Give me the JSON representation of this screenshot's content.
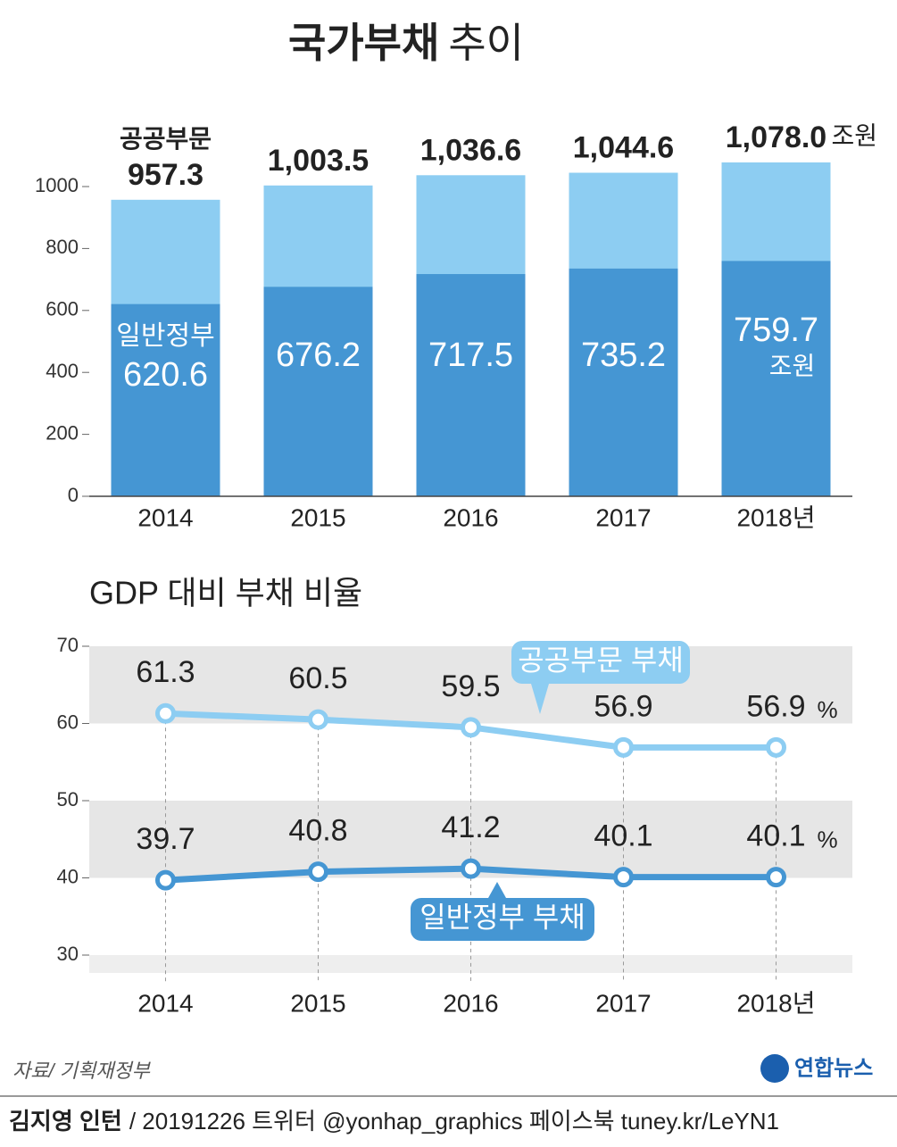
{
  "title": "국가부채",
  "title_suffix": "추이",
  "chart_data": [
    {
      "type": "bar",
      "categories": [
        "2014",
        "2015",
        "2016",
        "2017",
        "2018년"
      ],
      "unit": "조원",
      "series": [
        {
          "name": "공공부문",
          "color": "#8dcdf2",
          "values": [
            957.3,
            1003.5,
            1036.6,
            1044.6,
            1078.0
          ],
          "value_labels": [
            "957.3",
            "1,003.5",
            "1,036.6",
            "1,044.6",
            "1,078.0"
          ]
        },
        {
          "name": "일반정부",
          "color": "#4596d3",
          "values": [
            620.6,
            676.2,
            717.5,
            735.2,
            759.7
          ]
        }
      ],
      "ylim": [
        0,
        1200
      ],
      "yticks": [
        0,
        200,
        400,
        600,
        800,
        1000
      ]
    },
    {
      "type": "line",
      "title": "GDP 대비 부채 비율",
      "categories": [
        "2014",
        "2015",
        "2016",
        "2017",
        "2018년"
      ],
      "unit": "%",
      "series": [
        {
          "name": "공공부문 부채",
          "color": "#8dcdf2",
          "values": [
            61.3,
            60.5,
            59.5,
            56.9,
            56.9
          ]
        },
        {
          "name": "일반정부 부채",
          "color": "#4596d3",
          "values": [
            39.7,
            40.8,
            41.2,
            40.1,
            40.1
          ]
        }
      ],
      "ylim": [
        30,
        70
      ],
      "yticks": [
        30,
        40,
        50,
        60,
        70
      ]
    }
  ],
  "source": "자료/ 기획재정부",
  "logo": "연합뉴스",
  "footer": {
    "author": "김지영 인턴",
    "text": "/ 20191226 트위터 @yonhap_graphics  페이스북 tuney.kr/LeYN1"
  }
}
